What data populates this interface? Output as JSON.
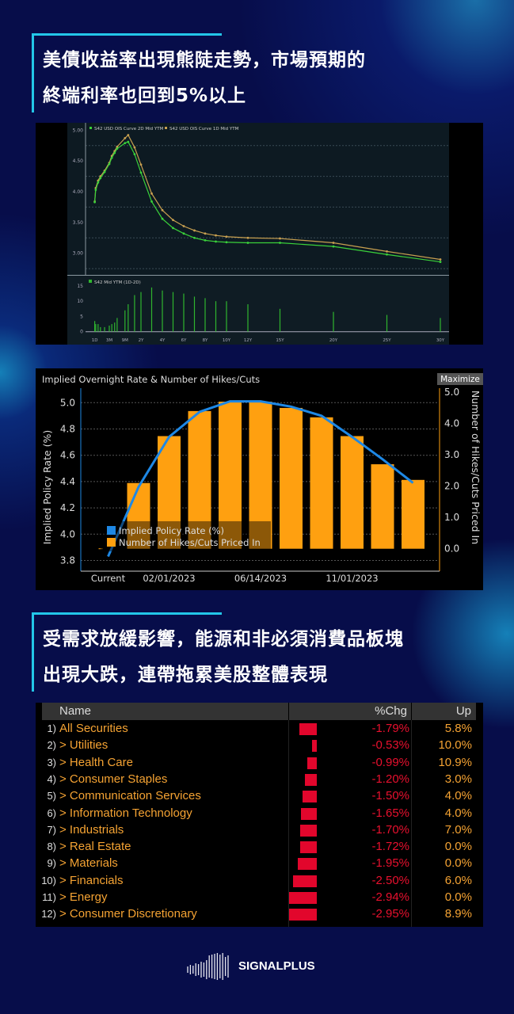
{
  "headline1": {
    "line1": "美債收益率出現熊陡走勢，市場預期的",
    "line2": "終端利率也回到5%以上"
  },
  "headline2": {
    "line1": "受需求放緩影響，能源和非必須消費品板塊",
    "line2": "出現大跌，連帶拖累美股整體表現"
  },
  "accent_color": "#23c6e8",
  "chart_data": [
    {
      "type": "line",
      "legend_position": "top-left",
      "grid": true,
      "x_ticks": [
        "1D",
        "3M",
        "9M",
        "2Y",
        "4Y",
        "6Y",
        "8Y",
        "10Y",
        "12Y",
        "15Y",
        "20Y",
        "25Y",
        "30Y"
      ],
      "y_ticks": [
        "5.00",
        "4.50",
        "4.00",
        "3.50",
        "3.00"
      ],
      "ylim": [
        2.75,
        5.1
      ],
      "x_years": [
        0.003,
        0.02,
        0.06,
        0.1,
        0.17,
        0.25,
        0.33,
        0.42,
        0.5,
        0.75,
        1,
        1.5,
        2,
        3,
        4,
        5,
        6,
        7,
        8,
        9,
        10,
        12,
        15,
        20,
        25,
        30
      ],
      "series": [
        {
          "name": "S42 USD OIS Curve 2D Mid YTM",
          "color": "#3ad13a",
          "values": [
            3.83,
            4.03,
            4.15,
            4.22,
            4.32,
            4.45,
            4.55,
            4.63,
            4.7,
            4.79,
            4.81,
            4.61,
            4.31,
            3.84,
            3.56,
            3.41,
            3.32,
            3.25,
            3.21,
            3.19,
            3.18,
            3.17,
            3.17,
            3.11,
            2.98,
            2.86
          ]
        },
        {
          "name": "S42 USD OIS Curve 1D Mid YTM",
          "color": "#c8a050",
          "values": [
            3.84,
            4.06,
            4.18,
            4.25,
            4.34,
            4.47,
            4.58,
            4.66,
            4.73,
            4.87,
            4.92,
            4.72,
            4.44,
            3.97,
            3.7,
            3.54,
            3.44,
            3.37,
            3.32,
            3.29,
            3.27,
            3.25,
            3.24,
            3.17,
            3.03,
            2.9
          ]
        }
      ],
      "sub_chart": {
        "type": "bar",
        "name": "S42 Mid YTM (1D-2D)",
        "color": "#2fb52f",
        "y_ticks": [
          "15",
          "10",
          "5",
          "0"
        ],
        "ylim": [
          0,
          17
        ],
        "values": [
          3.5,
          2.5,
          2.5,
          1.5,
          1.5,
          2,
          2.5,
          3,
          4.5,
          7,
          9,
          12,
          13,
          14.5,
          13.5,
          13,
          12.5,
          11.5,
          11,
          10,
          10,
          9,
          7.5,
          6.5,
          5.5,
          4.5
        ]
      }
    },
    {
      "type": "bar",
      "title": "Implied Overnight Rate & Number of Hikes/Cuts",
      "button": "Maximize",
      "ylabel": "Implied Policy Rate (%)",
      "y2label": "Number of Hikes/Cuts Priced In",
      "ylim": [
        3.8,
        5.1
      ],
      "y2lim": [
        -0.2,
        5.0
      ],
      "y_ticks": [
        "5.0",
        "4.8",
        "4.6",
        "4.4",
        "4.2",
        "4.0",
        "3.8"
      ],
      "y2_ticks": [
        "5.0",
        "4.0",
        "3.0",
        "2.0",
        "1.0",
        "0.0"
      ],
      "categories": [
        "Current",
        "",
        "02/01/2023",
        "",
        "",
        "06/14/2023",
        "",
        "",
        "11/01/2023",
        "",
        ""
      ],
      "series": [
        {
          "name": "Number of Hikes/Cuts Priced In",
          "color": "#ffa010",
          "axis": "right",
          "values": [
            0,
            2.1,
            3.6,
            4.4,
            4.7,
            4.7,
            4.5,
            4.2,
            3.6,
            2.7,
            2.2
          ]
        },
        {
          "name": "Implied Policy Rate (%)",
          "color": "#1e88e5",
          "axis": "left",
          "values": [
            3.83,
            4.36,
            4.74,
            4.93,
            5.01,
            5.01,
            4.97,
            4.9,
            4.74,
            4.57,
            4.39
          ]
        }
      ],
      "legend_position": "bottom-left",
      "grid": true
    },
    {
      "type": "table",
      "columns": [
        "Name",
        "%Chg",
        "Up"
      ],
      "rows": [
        {
          "num": "1)",
          "name": "All Securities",
          "chg": "-1.79%",
          "chg_value": -1.79,
          "up": "5.8%"
        },
        {
          "num": "2)",
          "name": "> Utilities",
          "chg": "-0.53%",
          "chg_value": -0.53,
          "up": "10.0%"
        },
        {
          "num": "3)",
          "name": "> Health Care",
          "chg": "-0.99%",
          "chg_value": -0.99,
          "up": "10.9%"
        },
        {
          "num": "4)",
          "name": "> Consumer Staples",
          "chg": "-1.20%",
          "chg_value": -1.2,
          "up": "3.0%"
        },
        {
          "num": "5)",
          "name": "> Communication Services",
          "chg": "-1.50%",
          "chg_value": -1.5,
          "up": "4.0%"
        },
        {
          "num": "6)",
          "name": "> Information Technology",
          "chg": "-1.65%",
          "chg_value": -1.65,
          "up": "4.0%"
        },
        {
          "num": "7)",
          "name": "> Industrials",
          "chg": "-1.70%",
          "chg_value": -1.7,
          "up": "7.0%"
        },
        {
          "num": "8)",
          "name": "> Real Estate",
          "chg": "-1.72%",
          "chg_value": -1.72,
          "up": "0.0%"
        },
        {
          "num": "9)",
          "name": "> Materials",
          "chg": "-1.95%",
          "chg_value": -1.95,
          "up": "0.0%"
        },
        {
          "num": "10)",
          "name": "> Financials",
          "chg": "-2.50%",
          "chg_value": -2.5,
          "up": "6.0%"
        },
        {
          "num": "11)",
          "name": "> Energy",
          "chg": "-2.94%",
          "chg_value": -2.94,
          "up": "0.0%"
        },
        {
          "num": "12)",
          "name": "> Consumer Discretionary",
          "chg": "-2.95%",
          "chg_value": -2.95,
          "up": "8.9%"
        }
      ]
    }
  ],
  "logo": {
    "text": "SIGNALPLUS",
    "icon": "soundwave-logo-icon"
  }
}
